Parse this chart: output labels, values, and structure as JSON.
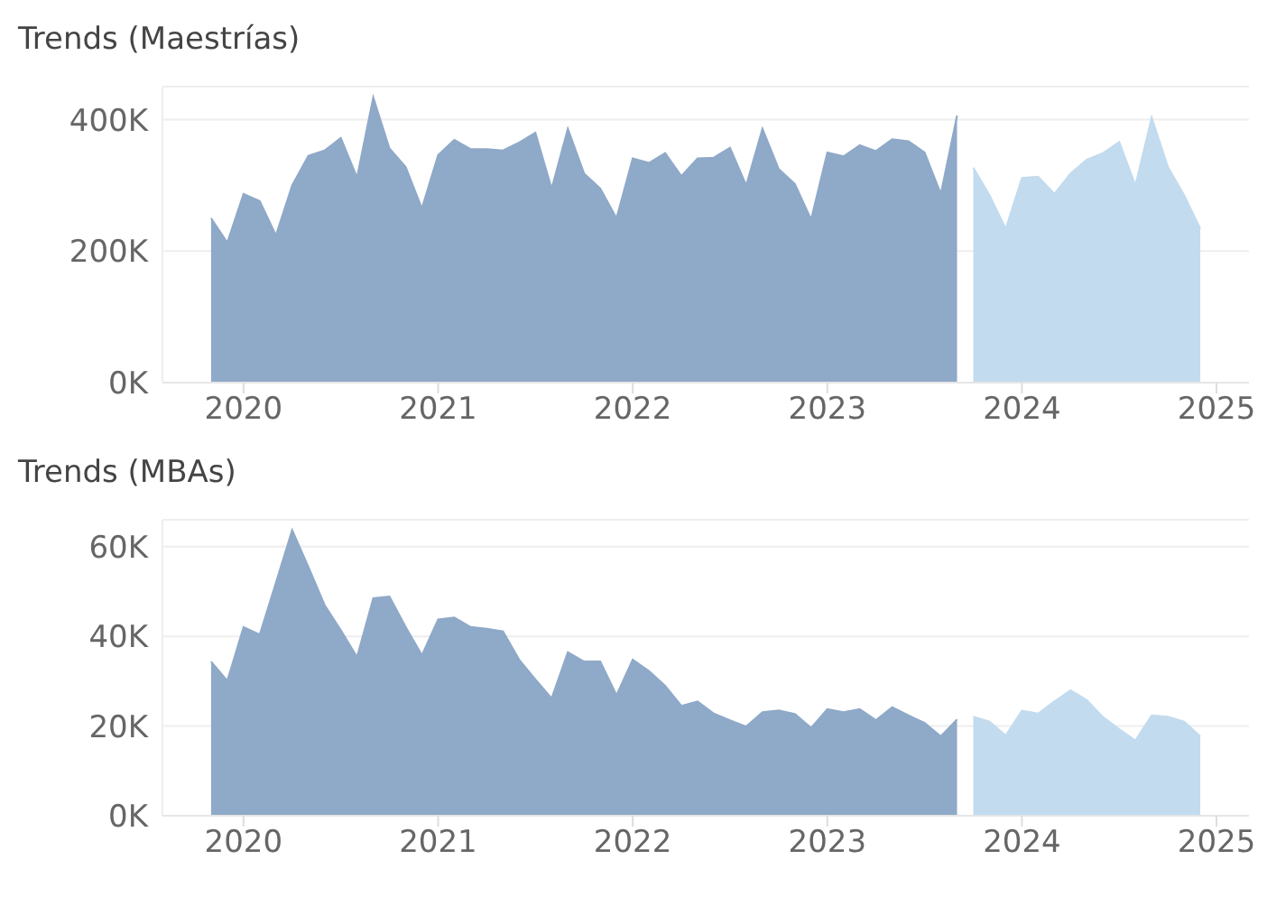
{
  "chart_data": [
    {
      "type": "area",
      "title": "Trends (Maestrías)",
      "xlim": [
        "2019-08",
        "2025-03"
      ],
      "xticks": [
        "2020",
        "2021",
        "2022",
        "2023",
        "2024",
        "2025"
      ],
      "ylim": [
        0,
        450000
      ],
      "yticks": [
        {
          "value": 0,
          "label": "0K"
        },
        {
          "value": 200000,
          "label": "200K"
        },
        {
          "value": 400000,
          "label": "400K"
        }
      ],
      "grid": "y",
      "legend": false,
      "series": [
        {
          "color": "#8fa9c8",
          "x": [
            "2019-11",
            "2019-12",
            "2020-01",
            "2020-02",
            "2020-03",
            "2020-04",
            "2020-05",
            "2020-06",
            "2020-07",
            "2020-08",
            "2020-09",
            "2020-10",
            "2020-11",
            "2020-12",
            "2021-01",
            "2021-02",
            "2021-03",
            "2021-04",
            "2021-05",
            "2021-06",
            "2021-07",
            "2021-08",
            "2021-09",
            "2021-10",
            "2021-11",
            "2021-12",
            "2022-01",
            "2022-02",
            "2022-03",
            "2022-04",
            "2022-05",
            "2022-06",
            "2022-07",
            "2022-08",
            "2022-09",
            "2022-10",
            "2022-11",
            "2022-12",
            "2023-01",
            "2023-02",
            "2023-03",
            "2023-04",
            "2023-05",
            "2023-06",
            "2023-07",
            "2023-08",
            "2023-09"
          ],
          "values": [
            250000,
            213000,
            287000,
            276000,
            224000,
            300000,
            345000,
            353000,
            372000,
            312000,
            434000,
            356000,
            328000,
            265000,
            346000,
            369000,
            355000,
            355000,
            353000,
            365000,
            380000,
            295000,
            386000,
            318000,
            295000,
            250000,
            341000,
            334000,
            349000,
            314000,
            341000,
            342000,
            357000,
            300000,
            386000,
            325000,
            302000,
            248000,
            350000,
            344000,
            361000,
            352000,
            370000,
            367000,
            350000,
            287000,
            406000
          ]
        },
        {
          "color": "#c3dbee",
          "x": [
            "2023-10",
            "2023-11",
            "2023-12",
            "2024-01",
            "2024-02",
            "2024-03",
            "2024-04",
            "2024-05",
            "2024-06",
            "2024-07",
            "2024-08",
            "2024-09",
            "2024-10",
            "2024-11",
            "2024-12"
          ],
          "values": [
            327000,
            285000,
            234000,
            311000,
            313000,
            287000,
            318000,
            339000,
            349000,
            366000,
            300000,
            403000,
            328000,
            285000,
            234000
          ]
        }
      ]
    },
    {
      "type": "area",
      "title": "Trends (MBAs)",
      "xlim": [
        "2019-08",
        "2025-03"
      ],
      "xticks": [
        "2020",
        "2021",
        "2022",
        "2023",
        "2024",
        "2025"
      ],
      "ylim": [
        0,
        66000
      ],
      "yticks": [
        {
          "value": 0,
          "label": "0K"
        },
        {
          "value": 20000,
          "label": "20K"
        },
        {
          "value": 40000,
          "label": "40K"
        },
        {
          "value": 60000,
          "label": "60K"
        }
      ],
      "grid": "y",
      "legend": false,
      "series": [
        {
          "color": "#8fa9c8",
          "x": [
            "2019-11",
            "2019-12",
            "2020-01",
            "2020-02",
            "2020-03",
            "2020-04",
            "2020-05",
            "2020-06",
            "2020-07",
            "2020-08",
            "2020-09",
            "2020-10",
            "2020-11",
            "2020-12",
            "2021-01",
            "2021-02",
            "2021-03",
            "2021-04",
            "2021-05",
            "2021-06",
            "2021-07",
            "2021-08",
            "2021-09",
            "2021-10",
            "2021-11",
            "2021-12",
            "2022-01",
            "2022-02",
            "2022-03",
            "2022-04",
            "2022-05",
            "2022-06",
            "2022-07",
            "2022-08",
            "2022-09",
            "2022-10",
            "2022-11",
            "2022-12",
            "2023-01",
            "2023-02",
            "2023-03",
            "2023-04",
            "2023-05",
            "2023-06",
            "2023-07",
            "2023-08",
            "2023-09"
          ],
          "values": [
            34400,
            30100,
            42100,
            40400,
            52000,
            63700,
            55500,
            47000,
            41400,
            35400,
            48500,
            48900,
            42100,
            35800,
            43800,
            44200,
            42100,
            41700,
            41100,
            34800,
            30400,
            26200,
            36500,
            34400,
            34400,
            26900,
            34800,
            32300,
            29000,
            24500,
            25500,
            22800,
            21300,
            19900,
            23100,
            23500,
            22700,
            19600,
            23800,
            23100,
            23800,
            21300,
            24200,
            22400,
            20700,
            17700,
            21500
          ]
        },
        {
          "color": "#c3dbee",
          "x": [
            "2023-10",
            "2023-11",
            "2023-12",
            "2024-01",
            "2024-02",
            "2024-03",
            "2024-04",
            "2024-05",
            "2024-06",
            "2024-07",
            "2024-08",
            "2024-09",
            "2024-10",
            "2024-11",
            "2024-12"
          ],
          "values": [
            22100,
            21000,
            17900,
            23400,
            22800,
            25500,
            28000,
            25800,
            22000,
            19300,
            16800,
            22400,
            22100,
            21000,
            17700
          ]
        }
      ]
    }
  ]
}
